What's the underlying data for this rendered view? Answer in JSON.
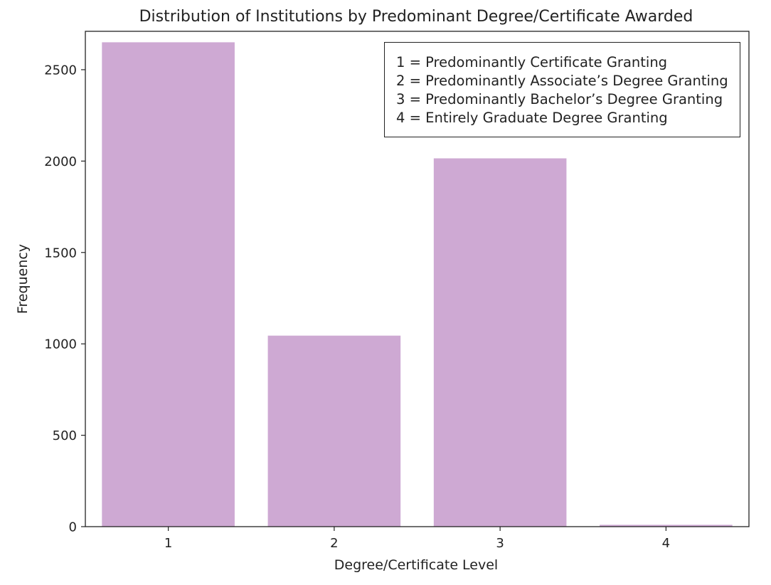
{
  "chart_data": {
    "type": "bar",
    "title": "Distribution of Institutions by Predominant Degree/Certificate Awarded",
    "xlabel": "Degree/Certificate Level",
    "ylabel": "Frequency",
    "categories": [
      "1",
      "2",
      "3",
      "4"
    ],
    "values": [
      2650,
      1045,
      2015,
      10
    ],
    "ylim": [
      0,
      2710
    ],
    "yticks": [
      0,
      500,
      1000,
      1500,
      2000,
      2500
    ],
    "bar_color": "#cea9d3",
    "grid": false,
    "legend_placement": "top-right",
    "legend_entries": [
      "1 = Predominantly Certificate Granting",
      "2 = Predominantly Associate’s Degree Granting",
      "3 = Predominantly Bachelor’s Degree Granting",
      "4 = Entirely Graduate Degree Granting"
    ]
  }
}
